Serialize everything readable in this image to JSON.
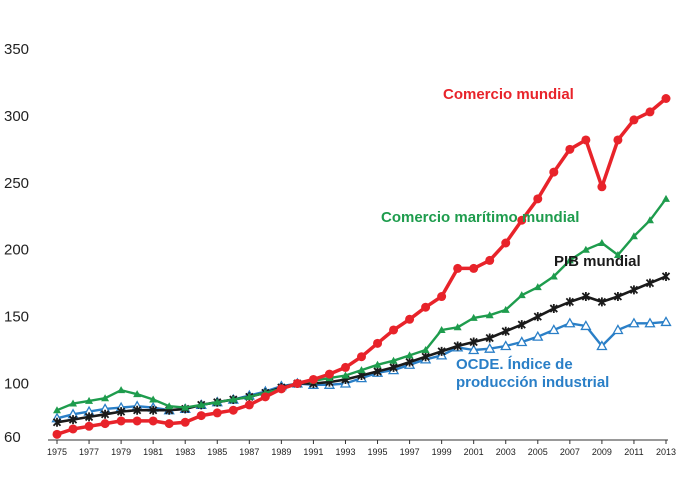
{
  "chart_data": {
    "type": "line",
    "xlim": [
      1975,
      2013
    ],
    "ylim": [
      60,
      350
    ],
    "yticks": [
      60,
      100,
      150,
      200,
      250,
      300,
      350
    ],
    "xticks": [
      1975,
      1977,
      1979,
      1981,
      1983,
      1985,
      1987,
      1989,
      1991,
      1993,
      1995,
      1997,
      1999,
      2001,
      2003,
      2005,
      2007,
      2009,
      2011,
      2013
    ],
    "grid": false,
    "x": [
      1975,
      1976,
      1977,
      1978,
      1979,
      1980,
      1981,
      1982,
      1983,
      1984,
      1985,
      1986,
      1987,
      1988,
      1989,
      1990,
      1991,
      1992,
      1993,
      1994,
      1995,
      1996,
      1997,
      1998,
      1999,
      2000,
      2001,
      2002,
      2003,
      2004,
      2005,
      2006,
      2007,
      2008,
      2009,
      2010,
      2011,
      2012,
      2013
    ],
    "series": [
      {
        "name": "Comercio mundial",
        "color": "#e8232a",
        "marker": "circle",
        "values": [
          62,
          66,
          68,
          70,
          72,
          72,
          72,
          70,
          71,
          76,
          78,
          80,
          84,
          90,
          96,
          100,
          103,
          107,
          112,
          120,
          130,
          140,
          148,
          157,
          165,
          186,
          186,
          192,
          205,
          222,
          238,
          258,
          275,
          282,
          247,
          282,
          297,
          303,
          313
        ]
      },
      {
        "name": "Comercio marítimo mundial",
        "color": "#1e9c4d",
        "marker": "triangle",
        "values": [
          80,
          85,
          87,
          89,
          95,
          92,
          88,
          83,
          82,
          84,
          86,
          88,
          90,
          93,
          96,
          100,
          102,
          104,
          106,
          110,
          114,
          117,
          121,
          125,
          140,
          142,
          149,
          151,
          155,
          166,
          172,
          180,
          192,
          200,
          205,
          196,
          210,
          222,
          238
        ]
      },
      {
        "name": "PIB mundial",
        "color": "#1a1a1a",
        "marker": "star",
        "values": [
          71,
          73,
          75,
          77,
          79,
          80,
          80,
          80,
          81,
          84,
          86,
          88,
          90,
          93,
          97,
          100,
          100,
          101,
          103,
          106,
          109,
          112,
          116,
          120,
          124,
          128,
          131,
          134,
          139,
          144,
          150,
          156,
          161,
          165,
          161,
          165,
          170,
          175,
          180
        ]
      },
      {
        "name": "OCDE. Índice de producción industrial",
        "color": "#2a7fc7",
        "marker": "triangle-open",
        "values": [
          74,
          77,
          79,
          81,
          82,
          83,
          82,
          80,
          81,
          84,
          86,
          88,
          91,
          94,
          98,
          100,
          99,
          99,
          100,
          104,
          108,
          110,
          114,
          118,
          121,
          127,
          125,
          126,
          128,
          131,
          135,
          140,
          145,
          143,
          128,
          140,
          145,
          145,
          146
        ]
      }
    ]
  }
}
